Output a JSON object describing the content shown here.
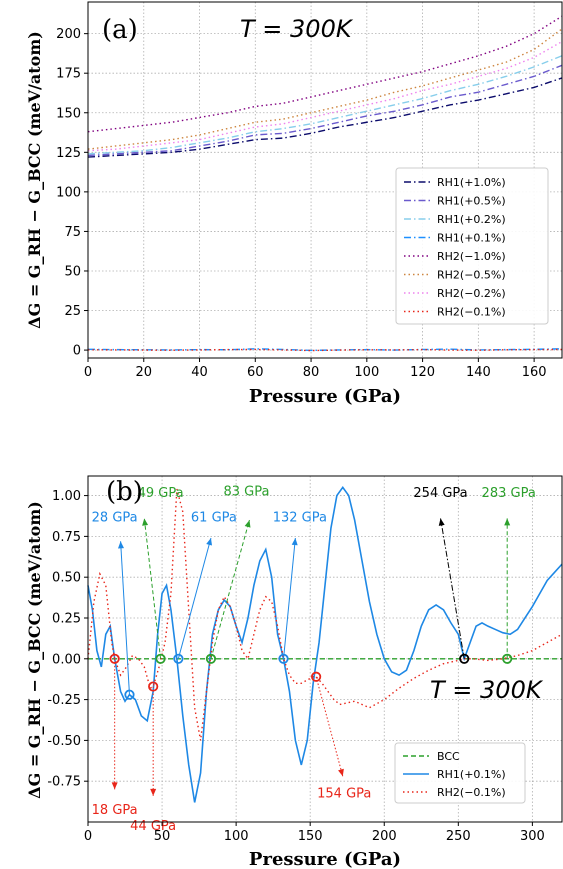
{
  "chart_data": [
    {
      "type": "line",
      "panel_label": "(a)",
      "annotation": "T = 300K",
      "xlabel": "Pressure (GPa)",
      "ylabel": "ΔG = G_RH − G_BCC (meV/atom)",
      "xlim": [
        0,
        170
      ],
      "ylim": [
        -5,
        220
      ],
      "xticks": [
        0,
        20,
        40,
        60,
        80,
        100,
        120,
        140,
        160
      ],
      "yticks": [
        0,
        25,
        50,
        75,
        100,
        125,
        150,
        175,
        200
      ],
      "grid": true,
      "legend_position": "right",
      "x": [
        0,
        10,
        20,
        30,
        40,
        50,
        60,
        70,
        80,
        90,
        100,
        110,
        120,
        130,
        140,
        150,
        160,
        170
      ],
      "series": [
        {
          "name": "RH1(+1.0%)",
          "color": "#0b0b6b",
          "dash": "dashdot",
          "values": [
            122,
            123,
            124,
            125,
            127,
            130,
            133,
            134,
            137,
            141,
            144,
            147,
            151,
            155,
            158,
            162,
            166,
            172
          ]
        },
        {
          "name": "RH1(+0.5%)",
          "color": "#6a5acd",
          "dash": "dashdot",
          "values": [
            123,
            124,
            125,
            126,
            129,
            132,
            136,
            137,
            140,
            144,
            148,
            151,
            155,
            160,
            163,
            168,
            173,
            180
          ]
        },
        {
          "name": "RH1(+0.2%)",
          "color": "#87ceeb",
          "dash": "dashdot",
          "values": [
            124,
            125,
            126,
            128,
            131,
            134,
            138,
            140,
            143,
            147,
            151,
            155,
            159,
            164,
            168,
            173,
            179,
            186
          ]
        },
        {
          "name": "RH1(+0.1%)",
          "color": "#1e90ff",
          "dash": "dashdot",
          "values": [
            0.5,
            0.3,
            0.2,
            0.1,
            0.3,
            0.2,
            0.8,
            0.4,
            -0.2,
            0.1,
            0.3,
            0.0,
            0.4,
            0.6,
            0.1,
            0.3,
            0.5,
            0.8
          ]
        },
        {
          "name": "RH2(−1.0%)",
          "color": "#800080",
          "dash": "dot",
          "values": [
            138,
            140,
            142,
            144,
            147,
            150,
            154,
            156,
            160,
            164,
            168,
            172,
            176,
            181,
            186,
            192,
            200,
            211
          ]
        },
        {
          "name": "RH2(−0.5%)",
          "color": "#cd853f",
          "dash": "dot",
          "values": [
            127,
            129,
            131,
            133,
            136,
            140,
            144,
            146,
            150,
            154,
            158,
            163,
            167,
            172,
            177,
            182,
            190,
            203
          ]
        },
        {
          "name": "RH2(−0.2%)",
          "color": "#ee82ee",
          "dash": "dot",
          "values": [
            126,
            127,
            129,
            131,
            133,
            137,
            141,
            143,
            147,
            151,
            155,
            159,
            164,
            168,
            173,
            178,
            185,
            195
          ]
        },
        {
          "name": "RH2(−0.1%)",
          "color": "#e8261a",
          "dash": "dot",
          "values": [
            0.2,
            0.1,
            0.0,
            -0.1,
            0.1,
            0.3,
            0.4,
            0.1,
            -0.3,
            0.0,
            0.2,
            0.1,
            0.3,
            0.0,
            -0.1,
            0.2,
            0.3,
            0.4
          ]
        }
      ]
    },
    {
      "type": "line",
      "panel_label": "(b)",
      "annotation": "T = 300K",
      "xlabel": "Pressure (GPa)",
      "ylabel": "ΔG = G_RH − G_BCC (meV/atom)",
      "xlim": [
        0,
        320
      ],
      "ylim": [
        -1.0,
        1.12
      ],
      "xticks": [
        0,
        50,
        100,
        150,
        200,
        250,
        300
      ],
      "yticks": [
        -0.75,
        -0.5,
        -0.25,
        0.0,
        0.25,
        0.5,
        0.75,
        1.0
      ],
      "grid": true,
      "legend_position": "lower-right",
      "series": [
        {
          "name": "BCC",
          "color": "#2ca02c",
          "dash": "dashed",
          "x": [
            0,
            320
          ],
          "values": [
            0,
            0
          ]
        },
        {
          "name": "RH1(+0.1%)",
          "color": "#1e88e5",
          "dash": "solid",
          "x": [
            0,
            3,
            6,
            9,
            12,
            15,
            18,
            22,
            25,
            28,
            32,
            36,
            40,
            44,
            47,
            50,
            53,
            56,
            60,
            64,
            68,
            72,
            76,
            80,
            84,
            88,
            92,
            96,
            100,
            104,
            108,
            112,
            116,
            120,
            124,
            128,
            132,
            136,
            140,
            144,
            148,
            152,
            156,
            160,
            164,
            168,
            172,
            176,
            180,
            185,
            190,
            195,
            200,
            205,
            210,
            215,
            220,
            225,
            230,
            235,
            240,
            245,
            250,
            254,
            258,
            262,
            266,
            270,
            275,
            280,
            285,
            290,
            295,
            300,
            305,
            310,
            315,
            320
          ],
          "values": [
            0.45,
            0.3,
            0.05,
            -0.05,
            0.15,
            0.2,
            0.0,
            -0.2,
            -0.26,
            -0.22,
            -0.25,
            -0.35,
            -0.38,
            -0.2,
            0.15,
            0.4,
            0.45,
            0.3,
            0.0,
            -0.35,
            -0.65,
            -0.88,
            -0.7,
            -0.2,
            0.15,
            0.3,
            0.36,
            0.32,
            0.2,
            0.1,
            0.25,
            0.45,
            0.6,
            0.67,
            0.5,
            0.15,
            0.0,
            -0.2,
            -0.5,
            -0.65,
            -0.5,
            -0.15,
            0.1,
            0.45,
            0.8,
            1.0,
            1.05,
            1.0,
            0.85,
            0.6,
            0.35,
            0.15,
            0.0,
            -0.08,
            -0.1,
            -0.07,
            0.05,
            0.2,
            0.3,
            0.33,
            0.3,
            0.22,
            0.15,
            0.0,
            0.1,
            0.2,
            0.22,
            0.2,
            0.18,
            0.16,
            0.15,
            0.18,
            0.25,
            0.32,
            0.4,
            0.48,
            0.53,
            0.58
          ]
        },
        {
          "name": "RH2(−0.1%)",
          "color": "#e8261a",
          "dash": "dot",
          "x": [
            0,
            4,
            8,
            12,
            16,
            18,
            22,
            26,
            30,
            34,
            38,
            42,
            44,
            48,
            52,
            56,
            60,
            64,
            68,
            72,
            76,
            80,
            84,
            88,
            92,
            96,
            100,
            104,
            108,
            112,
            116,
            120,
            124,
            128,
            132,
            136,
            140,
            144,
            148,
            152,
            154,
            158,
            162,
            166,
            170,
            175,
            180,
            185,
            190,
            200,
            210,
            220,
            230,
            240,
            250,
            254,
            260,
            270,
            280,
            290,
            300,
            310,
            320
          ],
          "values": [
            0.0,
            0.35,
            0.52,
            0.45,
            0.1,
            0.0,
            -0.1,
            -0.05,
            0.02,
            0.0,
            -0.05,
            -0.18,
            -0.17,
            -0.05,
            0.1,
            0.4,
            1.04,
            0.9,
            0.3,
            -0.3,
            -0.5,
            -0.2,
            0.1,
            0.3,
            0.38,
            0.32,
            0.2,
            0.05,
            0.0,
            0.15,
            0.3,
            0.38,
            0.35,
            0.2,
            0.0,
            -0.1,
            -0.15,
            -0.15,
            -0.13,
            -0.11,
            -0.11,
            -0.15,
            -0.2,
            -0.25,
            -0.28,
            -0.27,
            -0.26,
            -0.28,
            -0.3,
            -0.25,
            -0.18,
            -0.12,
            -0.07,
            -0.03,
            -0.01,
            0.0,
            0.0,
            -0.01,
            0.0,
            0.02,
            0.05,
            0.1,
            0.15
          ]
        }
      ],
      "crossings": [
        {
          "x": 18,
          "y": 0,
          "color": "#e8261a",
          "label": "18 GPa",
          "label_color": "#e8261a",
          "arrow_style": "dotted"
        },
        {
          "x": 28,
          "y": -0.22,
          "color": "#1e88e5",
          "label": "28 GPa",
          "label_color": "#1e88e5",
          "arrow_style": "solid"
        },
        {
          "x": 44,
          "y": -0.17,
          "color": "#e8261a",
          "label": "44 GPa",
          "label_color": "#e8261a",
          "arrow_style": "dotted"
        },
        {
          "x": 49,
          "y": 0,
          "color": "#2ca02c",
          "label": "49 GPa",
          "label_color": "#2ca02c",
          "arrow_style": "dashed"
        },
        {
          "x": 61,
          "y": 0,
          "color": "#1e88e5",
          "label": "61 GPa",
          "label_color": "#1e88e5",
          "arrow_style": "solid"
        },
        {
          "x": 83,
          "y": 0,
          "color": "#2ca02c",
          "label": "83 GPa",
          "label_color": "#2ca02c",
          "arrow_style": "dashed"
        },
        {
          "x": 132,
          "y": 0,
          "color": "#1e88e5",
          "label": "132 GPa",
          "label_color": "#1e88e5",
          "arrow_style": "solid"
        },
        {
          "x": 154,
          "y": -0.11,
          "color": "#e8261a",
          "label": "154 GPa",
          "label_color": "#e8261a",
          "arrow_style": "dotted"
        },
        {
          "x": 254,
          "y": 0,
          "color": "#000000",
          "label": "254 GPa",
          "label_color": "#000000",
          "arrow_style": "dashdot"
        },
        {
          "x": 283,
          "y": 0,
          "color": "#2ca02c",
          "label": "283 GPa",
          "label_color": "#2ca02c",
          "arrow_style": "dashed"
        }
      ]
    }
  ]
}
